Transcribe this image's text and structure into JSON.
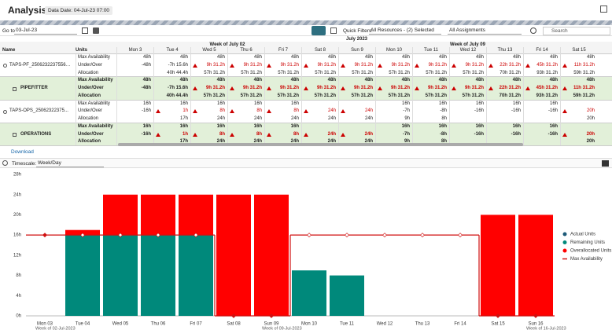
{
  "header": {
    "title": "Analysis",
    "data_date": "Data Date: 04-Jul-23 07:00"
  },
  "toolbar": {
    "go_to": "Go to",
    "date": "03-Jul-23",
    "quick_filters": "Quick Filters:",
    "resource_filter": "All Resources - (2) Selected",
    "assignment_filter": "All Assignments",
    "search": "Search"
  },
  "grid": {
    "name_header": "Name",
    "units_header": "Units",
    "month": "July 2023",
    "weeks": [
      {
        "label": "Week of July 02",
        "days": [
          "Mon 3",
          "Tue 4",
          "Wed 5",
          "Thu 6",
          "Fri 7",
          "Sat 8"
        ]
      },
      {
        "label": "Week of July 09",
        "days": [
          "Sun 9",
          "Mon 10",
          "Tue 11",
          "Wed 12",
          "Thu 13",
          "Fri 14",
          "Sat 15"
        ]
      }
    ],
    "rows": [
      {
        "name": "TAPS-PF_25062322375569...",
        "summary": false,
        "metrics": [
          {
            "label": "Max Availability",
            "values": [
              "48h",
              "48h",
              "48h",
              "48h",
              "48h",
              "48h",
              "48h",
              "48h",
              "48h",
              "48h",
              "48h",
              "48h",
              "48h"
            ]
          },
          {
            "label": "Under/Over",
            "values": [
              "-48h",
              "-7h 15.6h",
              "9h 31.2h",
              "9h 31.2h",
              "9h 31.2h",
              "9h 31.2h",
              "9h 31.2h",
              "9h 31.2h",
              "9h 31.2h",
              "9h 31.2h",
              "22h 31.2h",
              "45h 31.2h",
              "11h 31.2h"
            ]
          },
          {
            "label": "Allocation",
            "values": [
              null,
              "40h 44.4h",
              "57h 31.2h",
              "57h 31.2h",
              "57h 31.2h",
              "57h 31.2h",
              "57h 31.2h",
              "57h 31.2h",
              "57h 31.2h",
              "57h 31.2h",
              "70h 31.2h",
              "93h 31.2h",
              "59h 31.2h"
            ]
          }
        ]
      },
      {
        "name": "PIPEFITTER",
        "summary": true,
        "metrics": [
          {
            "label": "Max Availability",
            "values": [
              "48h",
              "48h",
              "48h",
              "48h",
              "48h",
              "48h",
              "48h",
              "48h",
              "48h",
              "48h",
              "48h",
              "48h",
              "48h"
            ]
          },
          {
            "label": "Under/Over",
            "values": [
              "-48h",
              "-7h 15.6h",
              "9h 31.2h",
              "9h 31.2h",
              "9h 31.2h",
              "9h 31.2h",
              "9h 31.2h",
              "9h 31.2h",
              "9h 31.2h",
              "9h 31.2h",
              "22h 31.2h",
              "45h 31.2h",
              "11h 31.2h"
            ]
          },
          {
            "label": "Allocation",
            "values": [
              null,
              "40h 44.4h",
              "57h 31.2h",
              "57h 31.2h",
              "57h 31.2h",
              "57h 31.2h",
              "57h 31.2h",
              "57h 31.2h",
              "57h 31.2h",
              "57h 31.2h",
              "70h 31.2h",
              "93h 31.2h",
              "59h 31.2h"
            ]
          }
        ]
      },
      {
        "name": "TAPS-OPS_25062322375...",
        "summary": false,
        "metrics": [
          {
            "label": "Max Availability",
            "values": [
              "16h",
              "16h",
              "16h",
              "16h",
              "16h",
              null,
              null,
              "16h",
              "16h",
              "16h",
              "16h",
              "16h",
              null
            ]
          },
          {
            "label": "Under/Over",
            "values": [
              "-16h",
              "1h",
              "8h",
              "8h",
              "8h",
              "24h",
              "24h",
              "-7h",
              "-8h",
              "-16h",
              "-16h",
              "-16h",
              "20h"
            ]
          },
          {
            "label": "Allocation",
            "values": [
              null,
              "17h",
              "24h",
              "24h",
              "24h",
              "24h",
              "24h",
              "9h",
              "8h",
              null,
              null,
              null,
              "20h"
            ]
          }
        ]
      },
      {
        "name": "OPERATIONS",
        "summary": true,
        "metrics": [
          {
            "label": "Max Availability",
            "values": [
              "16h",
              "16h",
              "16h",
              "16h",
              "16h",
              null,
              null,
              "16h",
              "16h",
              "16h",
              "16h",
              "16h",
              null
            ]
          },
          {
            "label": "Under/Over",
            "values": [
              "-16h",
              "1h",
              "8h",
              "8h",
              "8h",
              "24h",
              "24h",
              "-7h",
              "-8h",
              "-16h",
              "-16h",
              "-16h",
              "20h"
            ]
          },
          {
            "label": "Allocation",
            "values": [
              null,
              "17h",
              "24h",
              "24h",
              "24h",
              "24h",
              "24h",
              "9h",
              "8h",
              null,
              null,
              null,
              "20h"
            ]
          }
        ]
      }
    ]
  },
  "download": "Download",
  "timescale": {
    "label": "Timescale:",
    "value": "Week/Day"
  },
  "chart_data": {
    "type": "bar",
    "stacked": true,
    "categories": [
      "Mon 03",
      "Tue 04",
      "Wed 05",
      "Thu 06",
      "Fri 07",
      "Sat 08",
      "Sun 09",
      "Mon 10",
      "Tue 11",
      "Wed 12",
      "Thu 13",
      "Fri 14",
      "Sat 15",
      "Sun 16"
    ],
    "week_labels": [
      "Week of 02-Jul-2023",
      "Week of 09-Jul-2023",
      "Week of 16-Jul-2023"
    ],
    "series": [
      {
        "name": "Actual Units",
        "color": "#1d5a78",
        "values": [
          0,
          0,
          0,
          0,
          0,
          0,
          0,
          0,
          0,
          0,
          0,
          0,
          0,
          0
        ]
      },
      {
        "name": "Remaining Units",
        "color": "#00897b",
        "values": [
          0,
          16,
          16,
          16,
          16,
          0,
          0,
          9,
          8,
          0,
          0,
          0,
          0,
          0
        ]
      },
      {
        "name": "Overallocated Units",
        "color": "#ff0000",
        "values": [
          0,
          1,
          8,
          8,
          8,
          24,
          24,
          0,
          0,
          0,
          0,
          0,
          20,
          20
        ]
      },
      {
        "name": "Max Availability",
        "type": "line",
        "color": "#d01010",
        "values": [
          16,
          16,
          16,
          16,
          16,
          0,
          0,
          16,
          16,
          16,
          16,
          16,
          0,
          0
        ]
      }
    ],
    "ylim": [
      0,
      28
    ],
    "yticks": [
      {
        "value": 0,
        "label": "0h"
      },
      {
        "value": 4,
        "label": "4h"
      },
      {
        "value": 8,
        "label": "8h"
      },
      {
        "value": 12,
        "label": "12h"
      },
      {
        "value": 16,
        "label": "16h"
      },
      {
        "value": 20,
        "label": "20h"
      },
      {
        "value": 24,
        "label": "24h"
      },
      {
        "value": 28,
        "label": "28h"
      }
    ],
    "grid": false,
    "legend": "right"
  }
}
